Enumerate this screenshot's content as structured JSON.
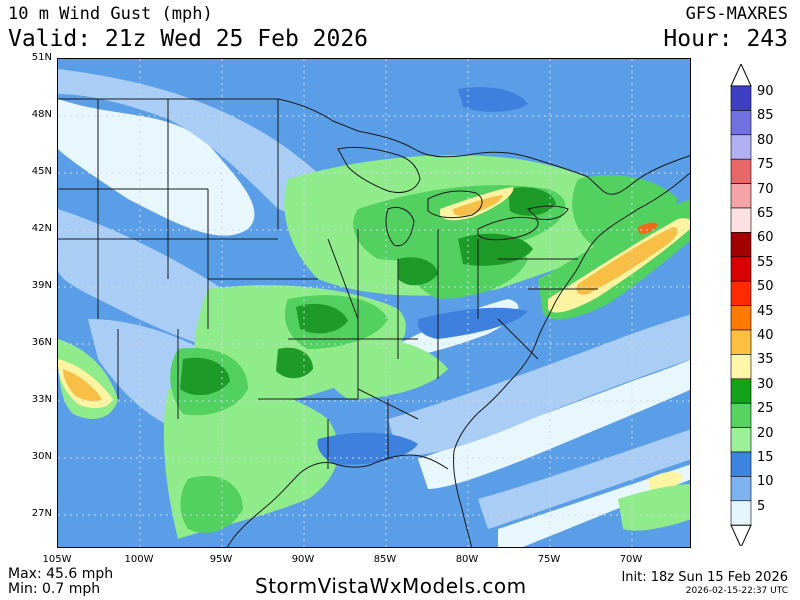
{
  "header": {
    "title": "10 m Wind Gust (mph)",
    "valid": "Valid: 21z Wed 25 Feb 2026",
    "model": "GFS-MAXRES",
    "hour": "Hour: 243"
  },
  "map": {
    "lat_labels": [
      "51N",
      "48N",
      "45N",
      "42N",
      "39N",
      "36N",
      "33N",
      "30N",
      "27N"
    ],
    "lon_labels": [
      "105W",
      "100W",
      "95W",
      "90W",
      "85W",
      "80W",
      "75W",
      "70W"
    ],
    "colors": {
      "background": "#5b9ee8",
      "light_blue": "#a9cdf4",
      "pale": "#e8f7fb",
      "mid_blue": "#3d80de",
      "light_green": "#90ec8a",
      "green": "#52d060",
      "dark_green": "#1e9a28",
      "yellow": "#fdf4a2",
      "orange": "#f8bf46",
      "red_orange": "#f06a1a",
      "outline": "#1a1a1a",
      "grid": "#cfd8e0"
    }
  },
  "colorbar": {
    "levels": [
      "90",
      "85",
      "80",
      "75",
      "70",
      "65",
      "60",
      "55",
      "50",
      "45",
      "40",
      "35",
      "30",
      "25",
      "20",
      "15",
      "10",
      "5"
    ],
    "colors": [
      "#3f3fc6",
      "#7171e0",
      "#b0b0f2",
      "#e8686a",
      "#f4a3a6",
      "#fde0e4",
      "#a30000",
      "#d90000",
      "#ff2a00",
      "#ff7a00",
      "#ffbf40",
      "#fff6a8",
      "#12a318",
      "#56d460",
      "#9cf09a",
      "#3b84e0",
      "#7db4f0",
      "#e4f6fc"
    ]
  },
  "footer": {
    "max": "Max: 45.6 mph",
    "min": "Min: 0.7 mph",
    "site": "StormVistaWxModels.com",
    "init": "Init: 18z Sun 15 Feb 2026",
    "timestamp": "2026-02-15-22:37 UTC"
  }
}
